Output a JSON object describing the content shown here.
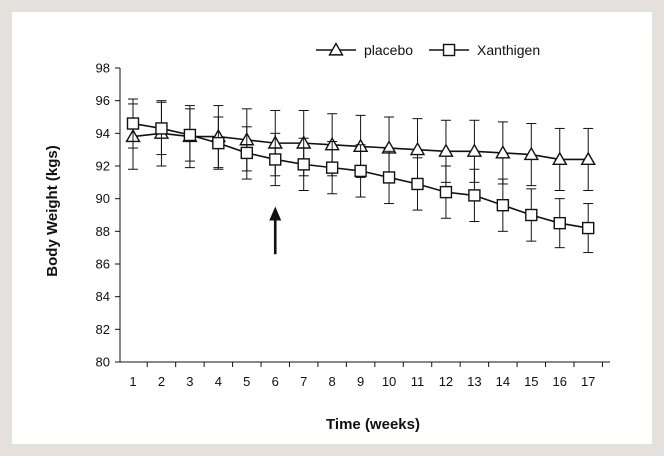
{
  "chart_data": {
    "type": "line",
    "title": "",
    "xlabel": "Time (weeks)",
    "ylabel": "Body Weight (kgs)",
    "ylim": [
      80,
      98
    ],
    "yticks": [
      80,
      82,
      84,
      86,
      88,
      90,
      92,
      94,
      96,
      98
    ],
    "x": [
      1,
      2,
      3,
      4,
      5,
      6,
      7,
      8,
      9,
      10,
      11,
      12,
      13,
      14,
      15,
      16,
      17
    ],
    "xticks": [
      "1",
      "2",
      "3",
      "4",
      "5",
      "6",
      "7",
      "8",
      "9",
      "10",
      "11",
      "12",
      "13",
      "14",
      "15",
      "16",
      "17"
    ],
    "grid": false,
    "legend_position": "top-right",
    "series": [
      {
        "name": "placebo",
        "marker": "triangle",
        "values": [
          93.8,
          94.0,
          93.8,
          93.8,
          93.6,
          93.4,
          93.4,
          93.3,
          93.2,
          93.1,
          93.0,
          92.9,
          92.9,
          92.8,
          92.7,
          92.4,
          92.4
        ],
        "error": [
          2.0,
          2.0,
          1.9,
          1.9,
          1.9,
          2.0,
          2.0,
          1.9,
          1.9,
          1.9,
          1.9,
          1.9,
          1.9,
          1.9,
          1.9,
          1.9,
          1.9
        ]
      },
      {
        "name": "Xanthigen",
        "marker": "square",
        "values": [
          94.6,
          94.3,
          93.9,
          93.4,
          92.8,
          92.4,
          92.1,
          91.9,
          91.7,
          91.3,
          90.9,
          90.4,
          90.2,
          89.6,
          89.0,
          88.5,
          88.2
        ],
        "error": [
          1.5,
          1.6,
          1.6,
          1.6,
          1.6,
          1.6,
          1.6,
          1.6,
          1.6,
          1.6,
          1.6,
          1.6,
          1.6,
          1.6,
          1.6,
          1.5,
          1.5
        ]
      }
    ],
    "annotations": [
      {
        "type": "arrow",
        "x": 6,
        "y_from": 86.6,
        "y_to": 89.4,
        "direction": "up"
      }
    ],
    "colors": {
      "line": "#111111",
      "background": "#ffffff",
      "frame": "#e4e0db"
    }
  }
}
